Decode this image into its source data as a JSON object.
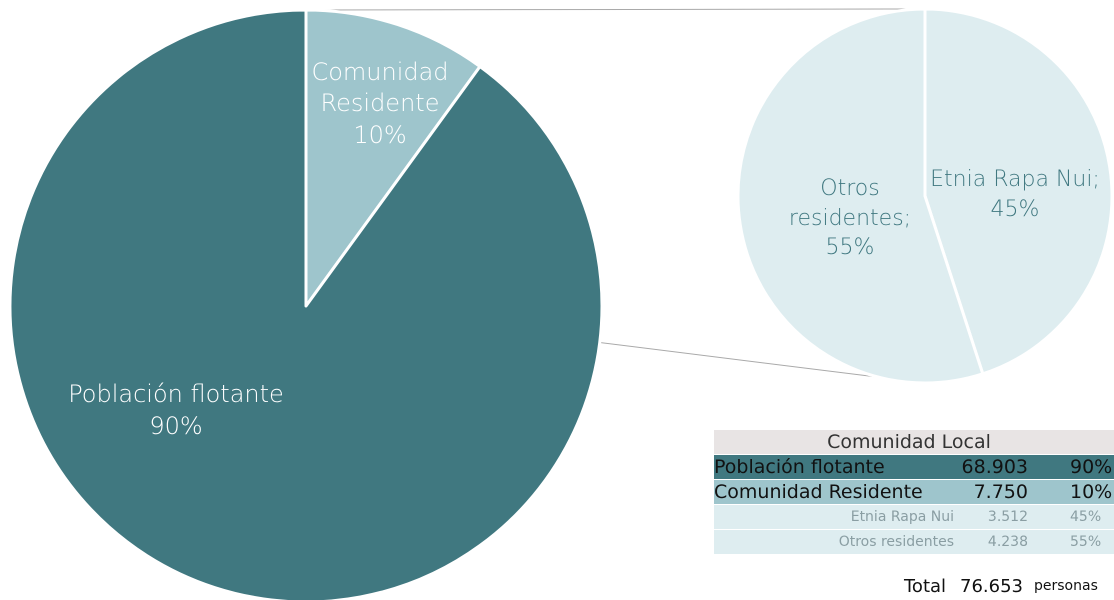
{
  "colors": {
    "main_slice": "#407880",
    "resident_slice": "#9ec5cc",
    "sub_pie": "#deedf0",
    "connector": "#a9a9a9",
    "divider": "#ffffff"
  },
  "chart_data": [
    {
      "type": "pie",
      "slices": [
        {
          "label": "Comunidad Residente",
          "value": 10,
          "value_label": "10%"
        },
        {
          "label": "Población flotante",
          "value": 90,
          "value_label": "90%"
        }
      ]
    },
    {
      "type": "pie",
      "slices": [
        {
          "label": "Etnia Rapa Nui;",
          "value": 45,
          "value_label": "45%"
        },
        {
          "label": "Otros residentes;",
          "value": 55,
          "value_label": "55%"
        }
      ]
    }
  ],
  "pie_labels": {
    "resident_line1": "Comunidad",
    "resident_line2": "Residente",
    "resident_pct": "10%",
    "floating_line1": "Población flotante",
    "floating_pct": "90%",
    "rapa_line1": "Etnia Rapa Nui;",
    "rapa_pct": "45%",
    "otros_line1": "Otros",
    "otros_line2": "residentes;",
    "otros_pct": "55%"
  },
  "table": {
    "title": "Comunidad Local",
    "rows": [
      {
        "name": "Población flotante",
        "value": "68.903",
        "pct": "90%"
      },
      {
        "name": "Comunidad Residente",
        "value": "7.750",
        "pct": "10%"
      },
      {
        "name": "Etnia Rapa Nui",
        "value": "3.512",
        "pct": "45%"
      },
      {
        "name": "Otros residentes",
        "value": "4.238",
        "pct": "55%"
      }
    ],
    "total_label": "Total",
    "total_value": "76.653",
    "total_unit": "personas"
  }
}
